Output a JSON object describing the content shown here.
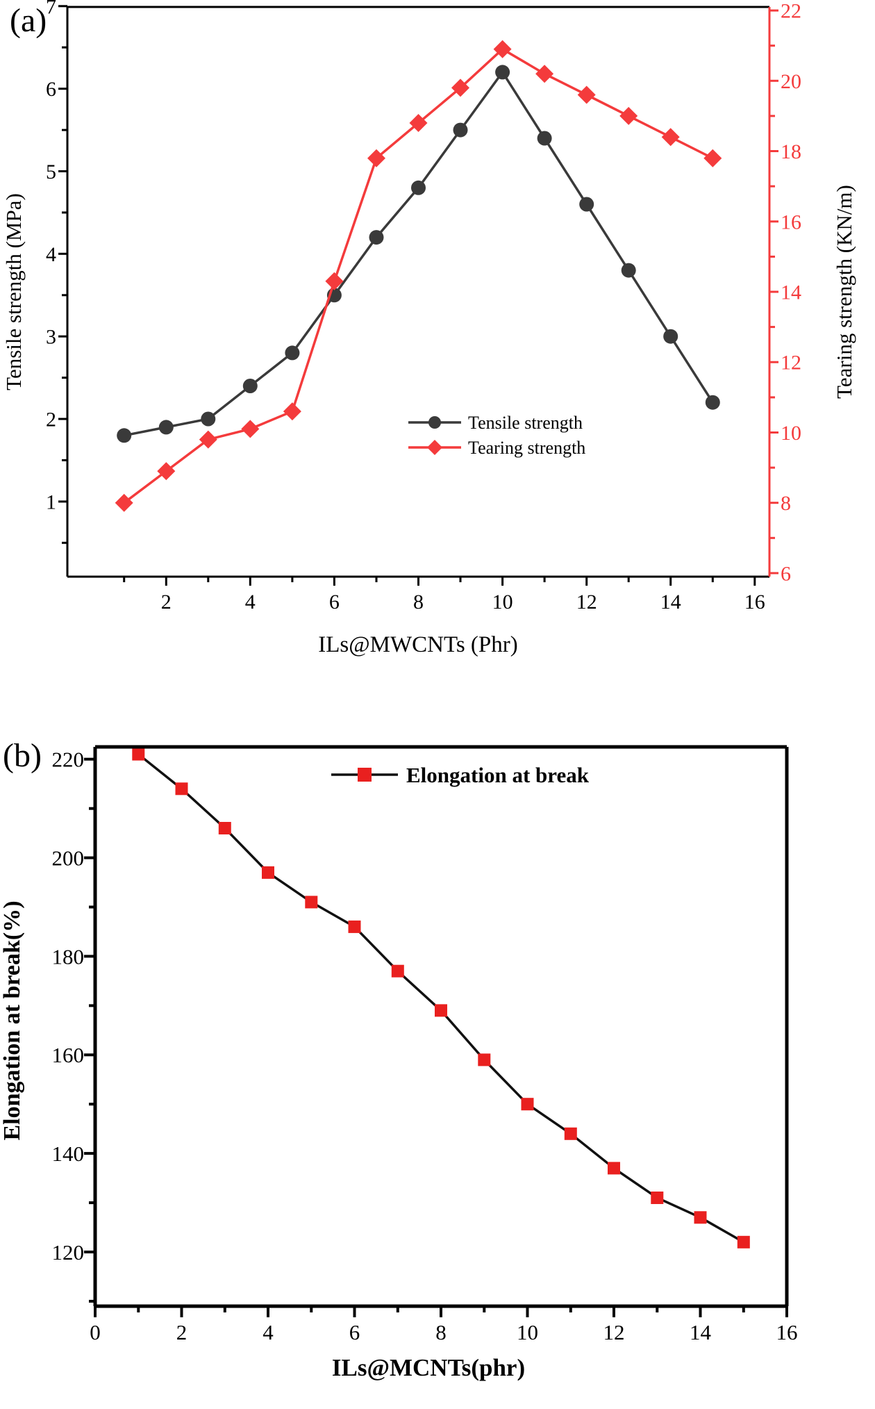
{
  "figure": {
    "background": "#ffffff"
  },
  "chart_data": [
    {
      "id": "panel-a",
      "type": "line",
      "panel_label": "(a)",
      "xlabel": "ILs@MWCNTs (Phr)",
      "x": [
        1,
        2,
        3,
        4,
        5,
        6,
        7,
        8,
        9,
        10,
        11,
        12,
        13,
        14,
        15
      ],
      "xlim": [
        -0.35,
        16.35
      ],
      "x_ticks_major": [
        2,
        4,
        6,
        8,
        10,
        12,
        14,
        16
      ],
      "x_ticks_minor": [
        1,
        3,
        5,
        7,
        9,
        11,
        13,
        15
      ],
      "grid": false,
      "legend_position": "center-right",
      "y_left": {
        "label": "Tensile strength (MPa)",
        "lim": [
          0.09,
          6.99
        ],
        "ticks_major": [
          1,
          2,
          3,
          4,
          5,
          6,
          7
        ],
        "ticks_minor": [
          0.5,
          1.5,
          2.5,
          3.5,
          4.5,
          5.5,
          6.5
        ],
        "color": "#000000"
      },
      "y_right": {
        "label": "Tearing strength (KN/m)",
        "lim": [
          5.9,
          22.1
        ],
        "ticks_major": [
          6,
          8,
          10,
          12,
          14,
          16,
          18,
          20,
          22
        ],
        "ticks_minor": [
          7,
          9,
          11,
          13,
          15,
          17,
          19,
          21
        ],
        "color": "#f43b3c",
        "label_color": "#000000"
      },
      "series": [
        {
          "name": "Tensile strength",
          "axis": "left",
          "marker": "circle",
          "color": "#3a3a3a",
          "line_color": "#3a3a3a",
          "values": [
            1.8,
            1.9,
            2.0,
            2.4,
            2.8,
            3.5,
            4.2,
            4.8,
            5.5,
            6.2,
            5.4,
            4.6,
            3.8,
            3.0,
            2.2
          ]
        },
        {
          "name": "Tearing strength",
          "axis": "right",
          "marker": "diamond",
          "color": "#f43b3c",
          "line_color": "#f43b3c",
          "values": [
            8.0,
            8.9,
            9.8,
            10.1,
            10.6,
            14.3,
            17.8,
            18.8,
            19.8,
            20.9,
            20.2,
            19.6,
            19.0,
            18.4,
            17.8
          ]
        }
      ]
    },
    {
      "id": "panel-b",
      "type": "line",
      "panel_label": "(b)",
      "xlabel": "ILs@MCNTs(phr)",
      "x": [
        1,
        2,
        3,
        4,
        5,
        6,
        7,
        8,
        9,
        10,
        11,
        12,
        13,
        14,
        15
      ],
      "xlim": [
        0,
        16
      ],
      "x_ticks_major": [
        0,
        2,
        4,
        6,
        8,
        10,
        12,
        14,
        16
      ],
      "x_ticks_minor": [
        1,
        3,
        5,
        7,
        9,
        11,
        13,
        15
      ],
      "grid": false,
      "legend_position": "top-center",
      "y_left": {
        "label": "Elongation at break(%)",
        "lim": [
          109,
          222.5
        ],
        "ticks_major": [
          120,
          140,
          160,
          180,
          200,
          220
        ],
        "ticks_minor": [
          110,
          130,
          150,
          170,
          190,
          210
        ],
        "color": "#000000"
      },
      "series": [
        {
          "name": "Elongation at break",
          "axis": "left",
          "marker": "square",
          "color": "#e9201f",
          "line_color": "#111111",
          "values": [
            221,
            214,
            206,
            197,
            191,
            186,
            177,
            169,
            159,
            150,
            144,
            137,
            131,
            127,
            122
          ]
        }
      ]
    }
  ]
}
